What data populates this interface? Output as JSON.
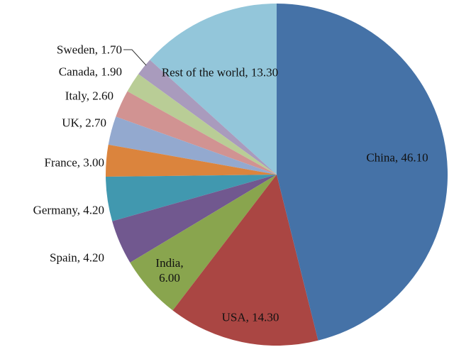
{
  "chart_data": {
    "type": "pie",
    "categories": [
      "China",
      "USA",
      "India",
      "Spain",
      "Germany",
      "France",
      "UK",
      "Italy",
      "Canada",
      "Sweden",
      "Rest of the world"
    ],
    "values": [
      46.1,
      14.3,
      6.0,
      4.2,
      4.2,
      3.0,
      2.7,
      2.6,
      1.9,
      1.7,
      13.3
    ],
    "value_labels": [
      "China, 46.10",
      "USA, 14.30",
      "India, 6.00",
      "Spain, 4.20",
      "Germany, 4.20",
      "France, 3.00",
      "UK, 2.70",
      "Italy, 2.60",
      "Canada, 1.90",
      "Sweden, 1.70",
      "Rest of the world, 13.30"
    ],
    "colors": [
      "#4572a7",
      "#aa4643",
      "#89a54e",
      "#71588f",
      "#4198af",
      "#db843d",
      "#93a9cf",
      "#d19392",
      "#b9cd96",
      "#a99bbd",
      "#93c6da"
    ]
  }
}
